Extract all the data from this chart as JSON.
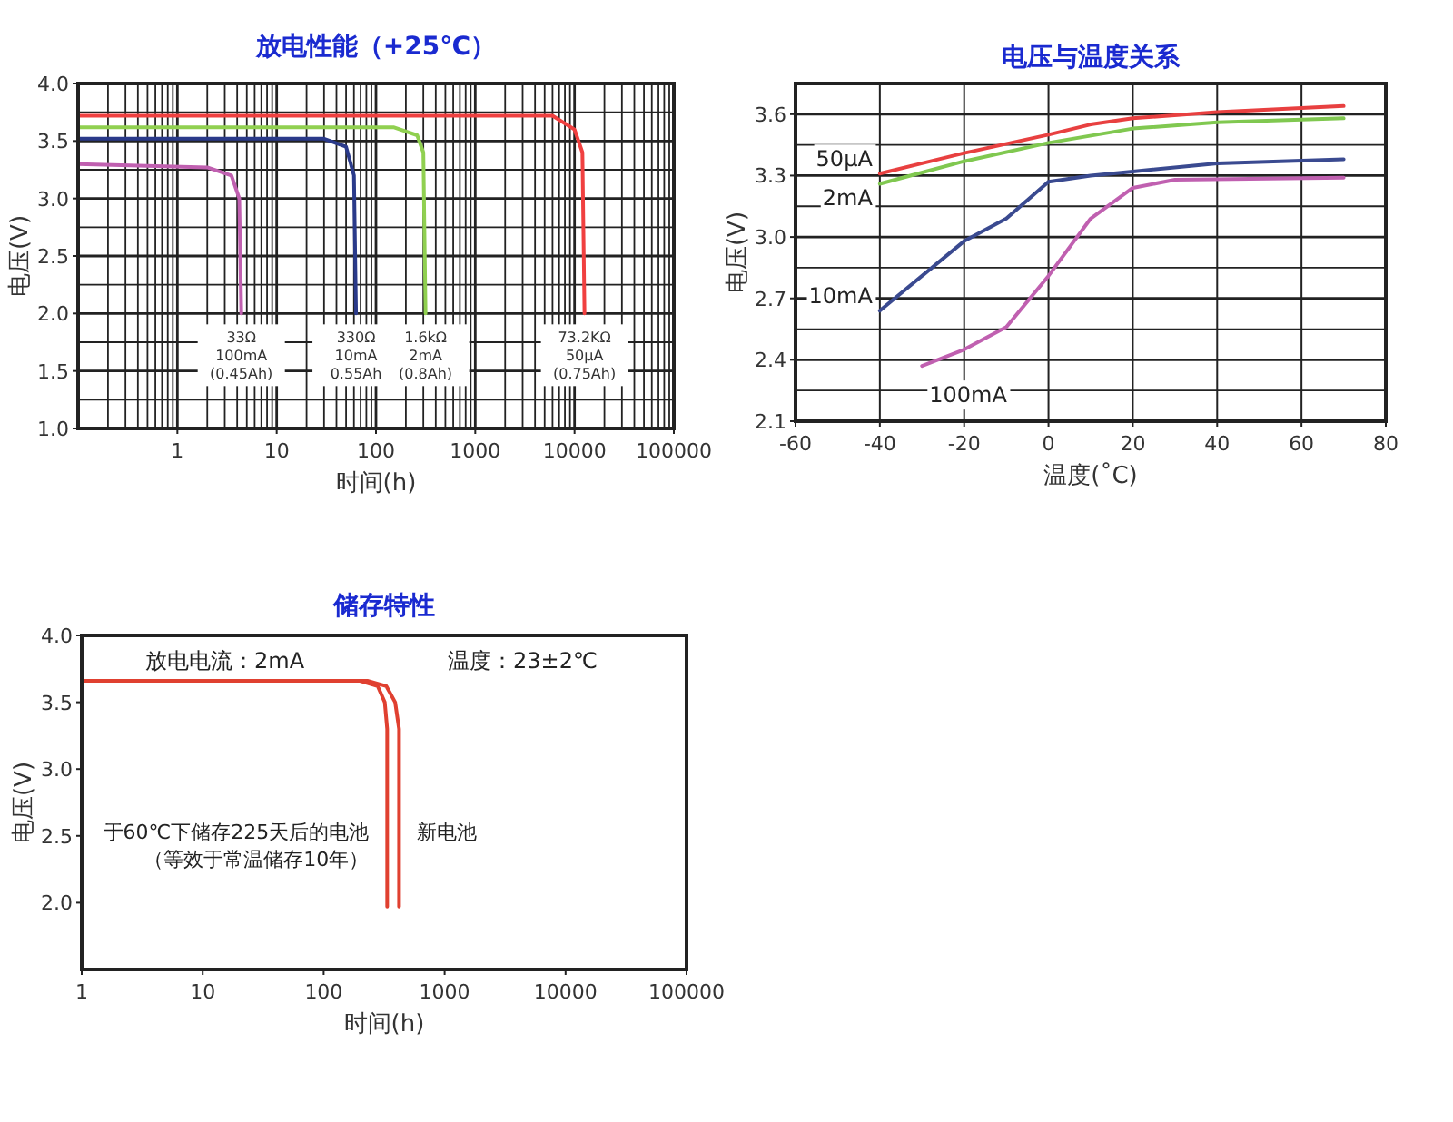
{
  "chart_data": [
    {
      "type": "line",
      "title": "放电性能（+25℃）",
      "xlabel": "时间(h)",
      "ylabel": "电压(V)",
      "log": "x",
      "grid": true,
      "xlim": [
        0.1,
        100000
      ],
      "xticks": [
        1,
        10,
        100,
        1000,
        10000,
        100000
      ],
      "ylim": [
        1.0,
        4.0
      ],
      "yticks": [
        {
          "value": 1,
          "label": "1.0"
        },
        {
          "value": 1.5,
          "label": "1.5"
        },
        {
          "value": 2,
          "label": "2.0"
        },
        {
          "value": 2.5,
          "label": "2.5"
        },
        {
          "value": 3,
          "label": "3.0"
        },
        {
          "value": 3.5,
          "label": "3.5"
        },
        {
          "value": 4,
          "label": "4.0"
        }
      ],
      "series": [
        {
          "color": "#c060b0",
          "x": [
            0.1,
            2,
            3.5,
            4.2,
            4.4
          ],
          "values": [
            3.3,
            3.27,
            3.2,
            3.0,
            2.0
          ]
        },
        {
          "color": "#2a3a8a",
          "x": [
            0.1,
            30,
            50,
            60,
            63
          ],
          "values": [
            3.52,
            3.52,
            3.45,
            3.2,
            2.0
          ]
        },
        {
          "color": "#90d050",
          "x": [
            0.1,
            150,
            260,
            300,
            316
          ],
          "values": [
            3.62,
            3.62,
            3.55,
            3.4,
            2.0
          ]
        },
        {
          "color": "#f04040",
          "x": [
            0.1,
            6000,
            10000,
            12000,
            12600
          ],
          "values": [
            3.72,
            3.72,
            3.6,
            3.4,
            2.0
          ]
        }
      ],
      "annotations": [
        "33Ω\n100mA\n(0.45Ah)",
        "330Ω\n10mA\n0.55Ah",
        "1.6kΩ\n2mA\n(0.8Ah)",
        "73.2KΩ\n50μA\n(0.75Ah)"
      ]
    },
    {
      "type": "line",
      "title": "电压与温度关系",
      "xlabel": "温度(˚C)",
      "ylabel": "电压(V)",
      "grid": true,
      "xlim": [
        -60,
        80
      ],
      "xticks": [
        -60,
        -40,
        -20,
        0,
        20,
        40,
        60,
        80
      ],
      "ylim": [
        2.1,
        3.75
      ],
      "yticks": [
        {
          "value": 2.1,
          "label": "2.1"
        },
        {
          "value": 2.4,
          "label": "2.4"
        },
        {
          "value": 2.7,
          "label": "2.7"
        },
        {
          "value": 3.0,
          "label": "3.0"
        },
        {
          "value": 3.3,
          "label": "3.3"
        },
        {
          "value": 3.6,
          "label": "3.6"
        }
      ],
      "series": [
        {
          "name": "50μA",
          "color": "#e84040",
          "x": [
            -40,
            -20,
            0,
            10,
            20,
            40,
            60,
            70
          ],
          "values": [
            3.31,
            3.41,
            3.5,
            3.55,
            3.58,
            3.61,
            3.63,
            3.64
          ]
        },
        {
          "name": "2mA",
          "color": "#80c850",
          "x": [
            -40,
            -20,
            0,
            20,
            40,
            70
          ],
          "values": [
            3.26,
            3.37,
            3.46,
            3.53,
            3.56,
            3.58
          ]
        },
        {
          "name": "10mA",
          "color": "#3a4a90",
          "x": [
            -40,
            -20,
            -10,
            0,
            10,
            20,
            40,
            70
          ],
          "values": [
            2.64,
            2.98,
            3.09,
            3.27,
            3.3,
            3.32,
            3.36,
            3.38
          ]
        },
        {
          "name": "100mA",
          "color": "#c060b0",
          "x": [
            -30,
            -20,
            -10,
            0,
            10,
            20,
            30,
            70
          ],
          "values": [
            2.37,
            2.45,
            2.56,
            2.81,
            3.09,
            3.24,
            3.28,
            3.29
          ]
        }
      ]
    },
    {
      "type": "line",
      "title": "储存特性",
      "xlabel": "时间(h)",
      "ylabel": "电压(V)",
      "log": "x",
      "grid": false,
      "xlim": [
        1,
        100000
      ],
      "xticks": [
        1,
        10,
        100,
        1000,
        10000,
        100000
      ],
      "ylim": [
        1.5,
        4.0
      ],
      "yticks": [
        {
          "value": 2,
          "label": "2.0"
        },
        {
          "value": 2.5,
          "label": "2.5"
        },
        {
          "value": 3,
          "label": "3.0"
        },
        {
          "value": 3.5,
          "label": "3.5"
        },
        {
          "value": 4,
          "label": "4.0"
        }
      ],
      "series": [
        {
          "name": "于60℃下储存225天后的电池（等效于常温储存10年）",
          "color": "#e04030",
          "x": [
            1,
            200,
            280,
            320,
            335,
            335
          ],
          "values": [
            3.66,
            3.66,
            3.62,
            3.5,
            3.3,
            1.97
          ]
        },
        {
          "name": "新电池",
          "color": "#e04030",
          "x": [
            1,
            230,
            330,
            390,
            420,
            420
          ],
          "values": [
            3.66,
            3.66,
            3.62,
            3.5,
            3.3,
            1.97
          ]
        }
      ],
      "annotations": [
        "放电电流：2mA",
        "温度：23±2℃"
      ]
    }
  ]
}
